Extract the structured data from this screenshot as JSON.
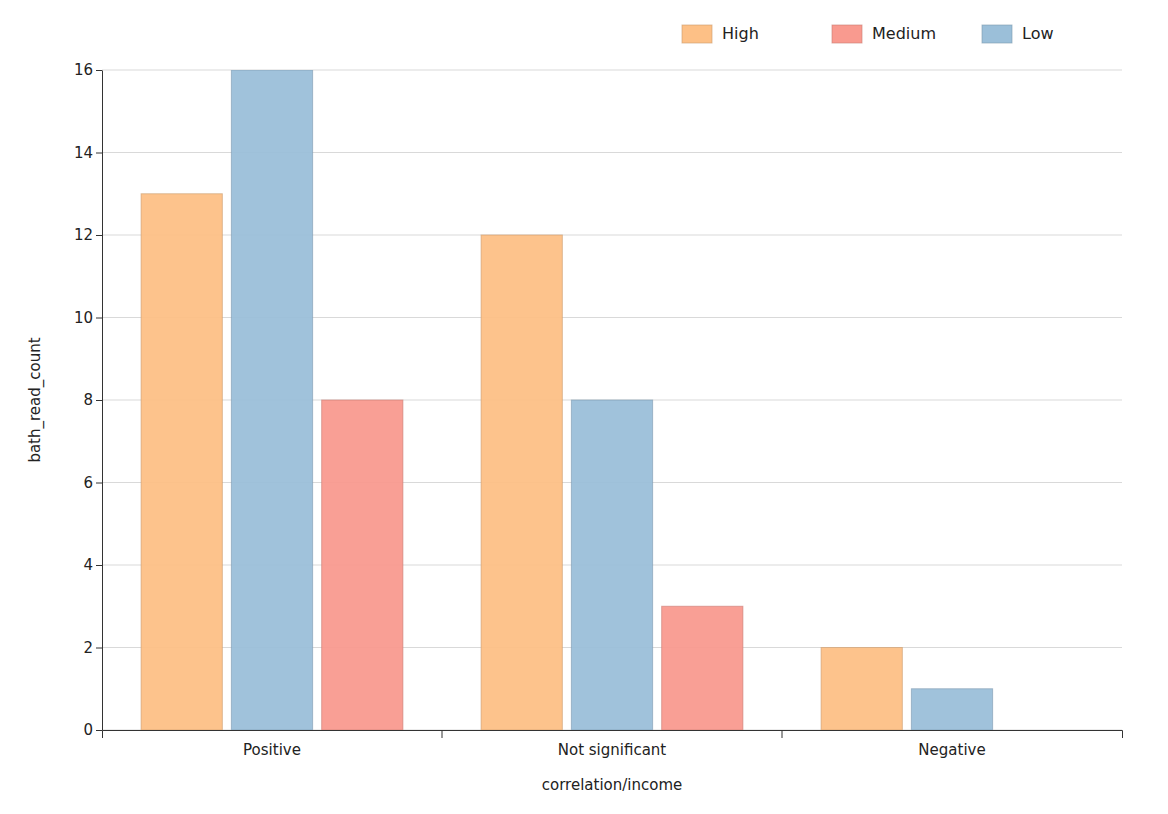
{
  "chart_data": {
    "type": "bar",
    "categories": [
      "Positive",
      "Not significant",
      "Negative"
    ],
    "x_label": "correlation/income",
    "y_label": "bath_read_count",
    "series": [
      {
        "name": "High",
        "color": "#fdc086",
        "values": [
          13,
          12,
          2
        ]
      },
      {
        "name": "Medium",
        "color": "#f99a8f",
        "values": [
          8,
          3,
          null
        ]
      },
      {
        "name": "Low",
        "color": "#9bbfd9",
        "values": [
          16,
          8,
          1
        ]
      }
    ],
    "ylim": [
      0,
      16
    ],
    "yticks": [
      0,
      2,
      4,
      6,
      8,
      10,
      12,
      14,
      16
    ],
    "grid": true,
    "legend": "top-right"
  }
}
